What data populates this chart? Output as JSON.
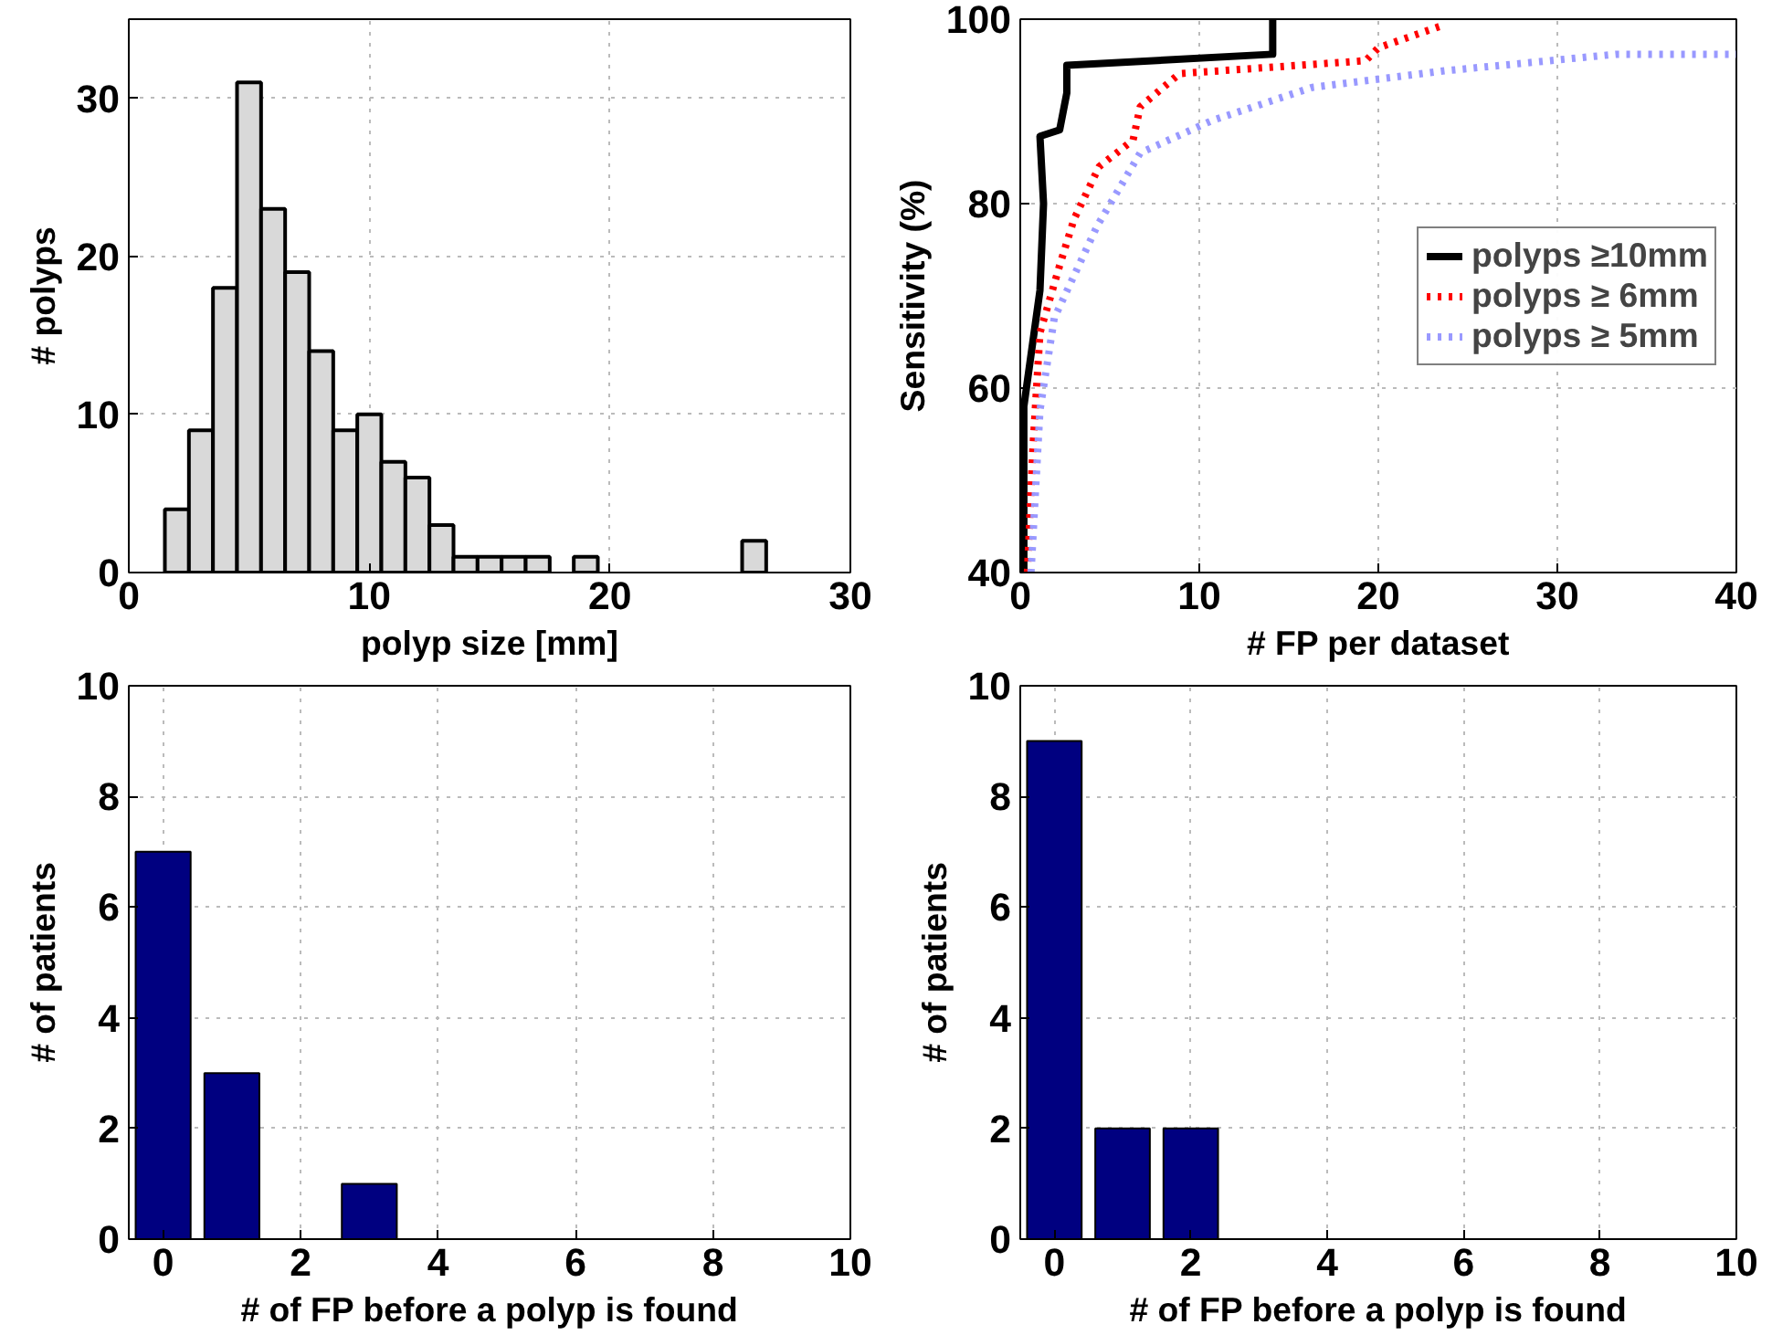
{
  "chart_data": [
    {
      "type": "histogram",
      "xlabel": "polyp size [mm]",
      "ylabel": "# polyps",
      "bins": [
        1.5,
        2.5,
        3.5,
        4.5,
        5.5,
        6.5,
        7.5,
        8.5,
        9.5,
        10.5,
        11.5,
        12.5,
        13.5,
        14.5,
        15.5,
        16.5,
        17.5,
        18.5,
        19.5,
        20.5,
        21.5,
        22.5,
        23.5,
        24.5,
        25.5,
        26.5
      ],
      "values": [
        4,
        9,
        18,
        31,
        23,
        19,
        14,
        9,
        10,
        7,
        6,
        3,
        1,
        1,
        1,
        1,
        0,
        1,
        0,
        0,
        0,
        0,
        0,
        0,
        2
      ],
      "color": "#d9d9d9",
      "xlim": [
        0,
        30
      ],
      "ylim": [
        0,
        35
      ],
      "xticks": [
        0,
        10,
        20,
        30
      ],
      "yticks": [
        0,
        10,
        20,
        30
      ],
      "grid": true
    },
    {
      "type": "line",
      "xlabel": "# FP per dataset",
      "ylabel": "Sensitivity (%)",
      "xlim": [
        0,
        40
      ],
      "ylim": [
        40,
        100
      ],
      "xticks": [
        0,
        10,
        20,
        30,
        40
      ],
      "yticks": [
        40,
        60,
        80,
        100
      ],
      "grid": true,
      "legend": "right",
      "series": [
        {
          "name": "polyps ≥10mm",
          "color": "#000000",
          "line_style": "solid",
          "x": [
            0.2,
            0.2,
            1.1,
            1.3,
            1.1,
            2.2,
            2.6,
            2.6,
            14.1,
            14.1
          ],
          "values": [
            40,
            58,
            70.6,
            80,
            87.3,
            88,
            92,
            95,
            96.2,
            100
          ]
        },
        {
          "name": "polyps ≥ 6mm",
          "color": "#ff0000",
          "line_style": "dotted",
          "x": [
            0.4,
            0.7,
            1.1,
            2.2,
            3,
            4.4,
            6.3,
            6.7,
            8.9,
            19.3,
            20,
            23.7
          ],
          "values": [
            40,
            53.3,
            66,
            73.3,
            78.3,
            84,
            86.9,
            90.5,
            94.1,
            95.5,
            96.9,
            99.4
          ]
        },
        {
          "name": "polyps ≥ 5mm",
          "color": "#9999ff",
          "line_style": "dotted",
          "x": [
            0.6,
            1.1,
            1.9,
            4.3,
            6.7,
            10.7,
            16.3,
            23.7,
            33.3,
            40
          ],
          "values": [
            40,
            57.6,
            67.6,
            77.6,
            85.5,
            89,
            92.6,
            94.4,
            96.2,
            96.2
          ]
        }
      ]
    },
    {
      "type": "bar",
      "xlabel": "# of FP before a polyp is found",
      "ylabel": "# of patients",
      "x": [
        0,
        1,
        3
      ],
      "values": [
        7,
        3,
        1
      ],
      "color": "#000080",
      "xlim": [
        -0.5,
        10
      ],
      "ylim": [
        0,
        10
      ],
      "xticks": [
        0,
        2,
        4,
        6,
        8,
        10
      ],
      "yticks": [
        0,
        2,
        4,
        6,
        8,
        10
      ],
      "grid": true
    },
    {
      "type": "bar",
      "xlabel": "# of FP before a polyp is found",
      "ylabel": "# of patients",
      "x": [
        0,
        1,
        2
      ],
      "values": [
        9,
        2,
        2
      ],
      "color": "#000080",
      "xlim": [
        -0.5,
        10
      ],
      "ylim": [
        0,
        10
      ],
      "xticks": [
        0,
        2,
        4,
        6,
        8,
        10
      ],
      "yticks": [
        0,
        2,
        4,
        6,
        8,
        10
      ],
      "grid": true
    }
  ]
}
